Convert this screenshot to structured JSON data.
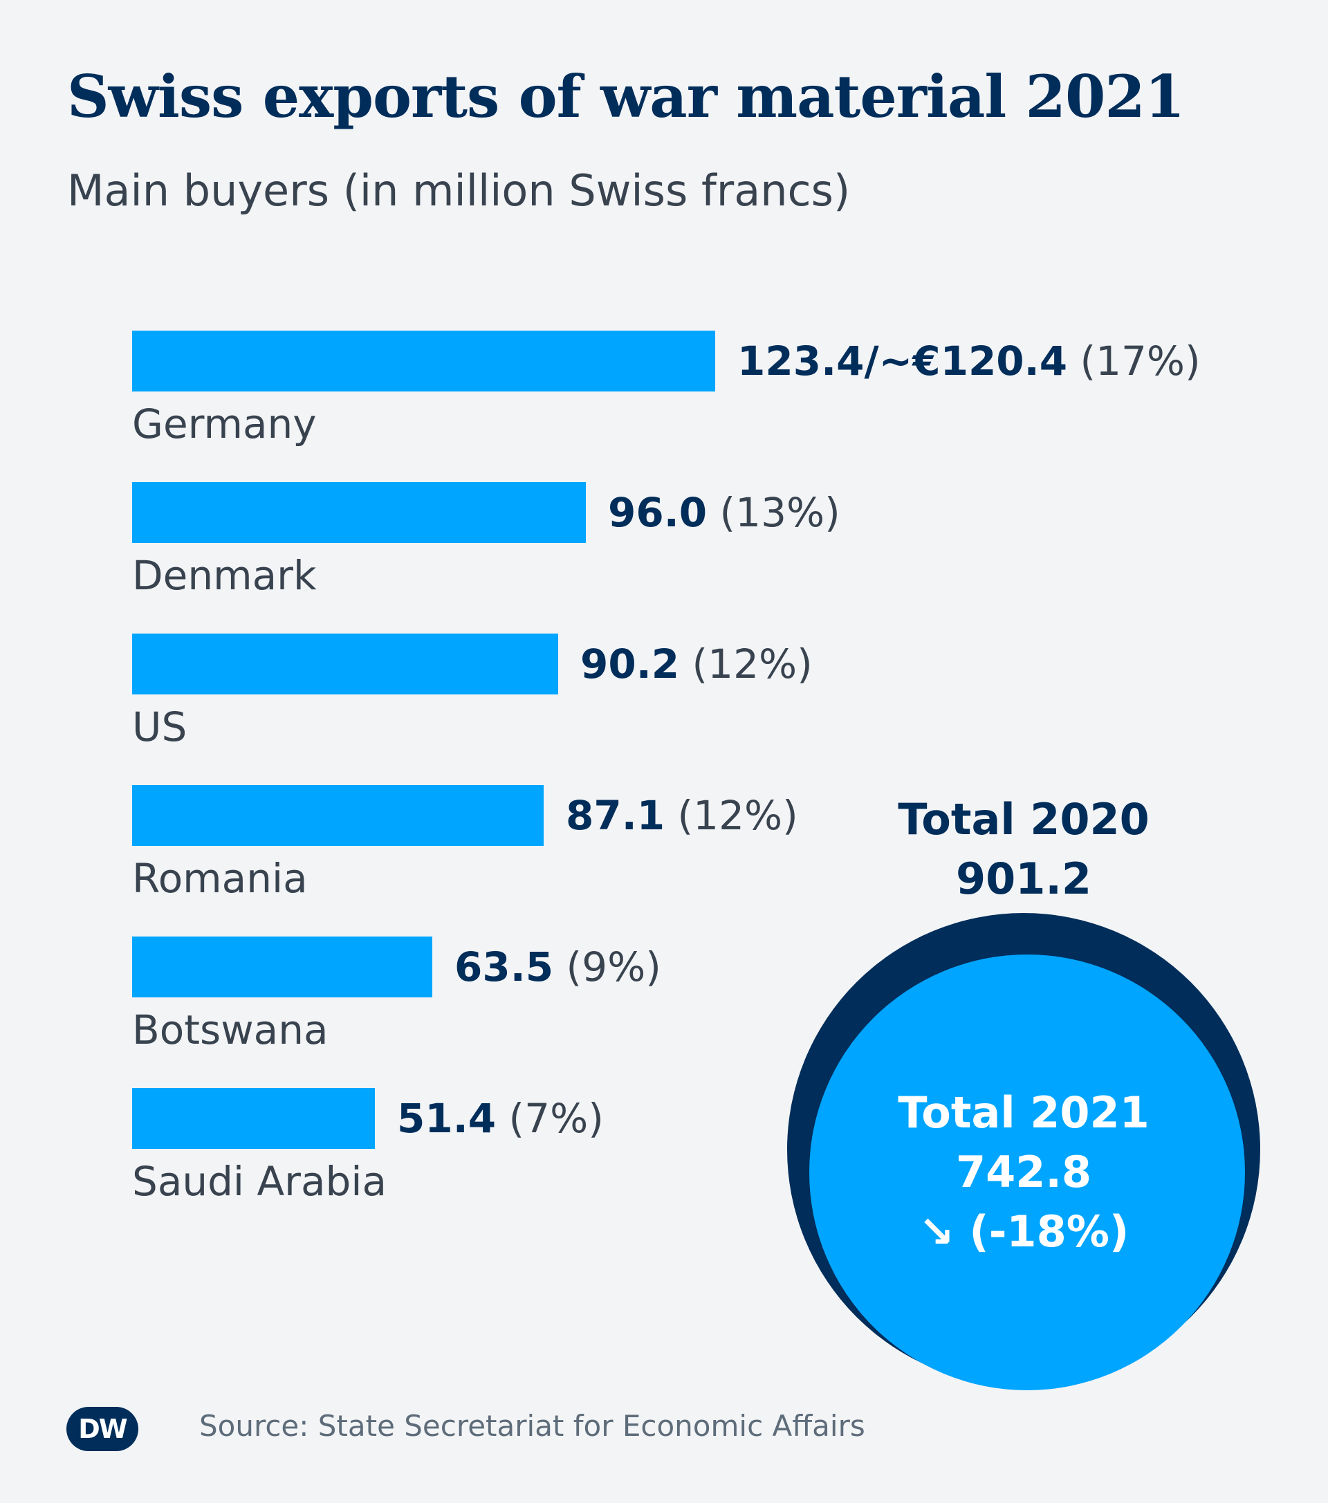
{
  "title": "Swiss exports of war material 2021",
  "subtitle": "Main buyers (in million Swiss francs)",
  "chart_data": {
    "type": "bar",
    "orientation": "horizontal",
    "categories": [
      "Germany",
      "Denmark",
      "US",
      "Romania",
      "Botswana",
      "Saudi Arabia"
    ],
    "values": [
      123.4,
      96.0,
      90.2,
      87.1,
      63.5,
      51.4
    ],
    "value_labels": [
      "123.4/~€120.4",
      "96.0",
      "90.2",
      "87.1",
      "63.5",
      "51.4"
    ],
    "share_labels": [
      "(17%)",
      "(13%)",
      "(12%)",
      "(12%)",
      "(9%)",
      "(7%)"
    ],
    "bar_color": "#00a5ff",
    "totals": {
      "total_2020_label": "Total 2020",
      "total_2020_value": "901.2",
      "total_2021_label": "Total 2021",
      "total_2021_value": "742.8",
      "change_label": "↘ (-18%)",
      "outer_color": "#002d5a",
      "inner_color": "#00a5ff"
    }
  },
  "logo_text": "DW",
  "source": "Source: State Secretariat for Economic Affairs"
}
